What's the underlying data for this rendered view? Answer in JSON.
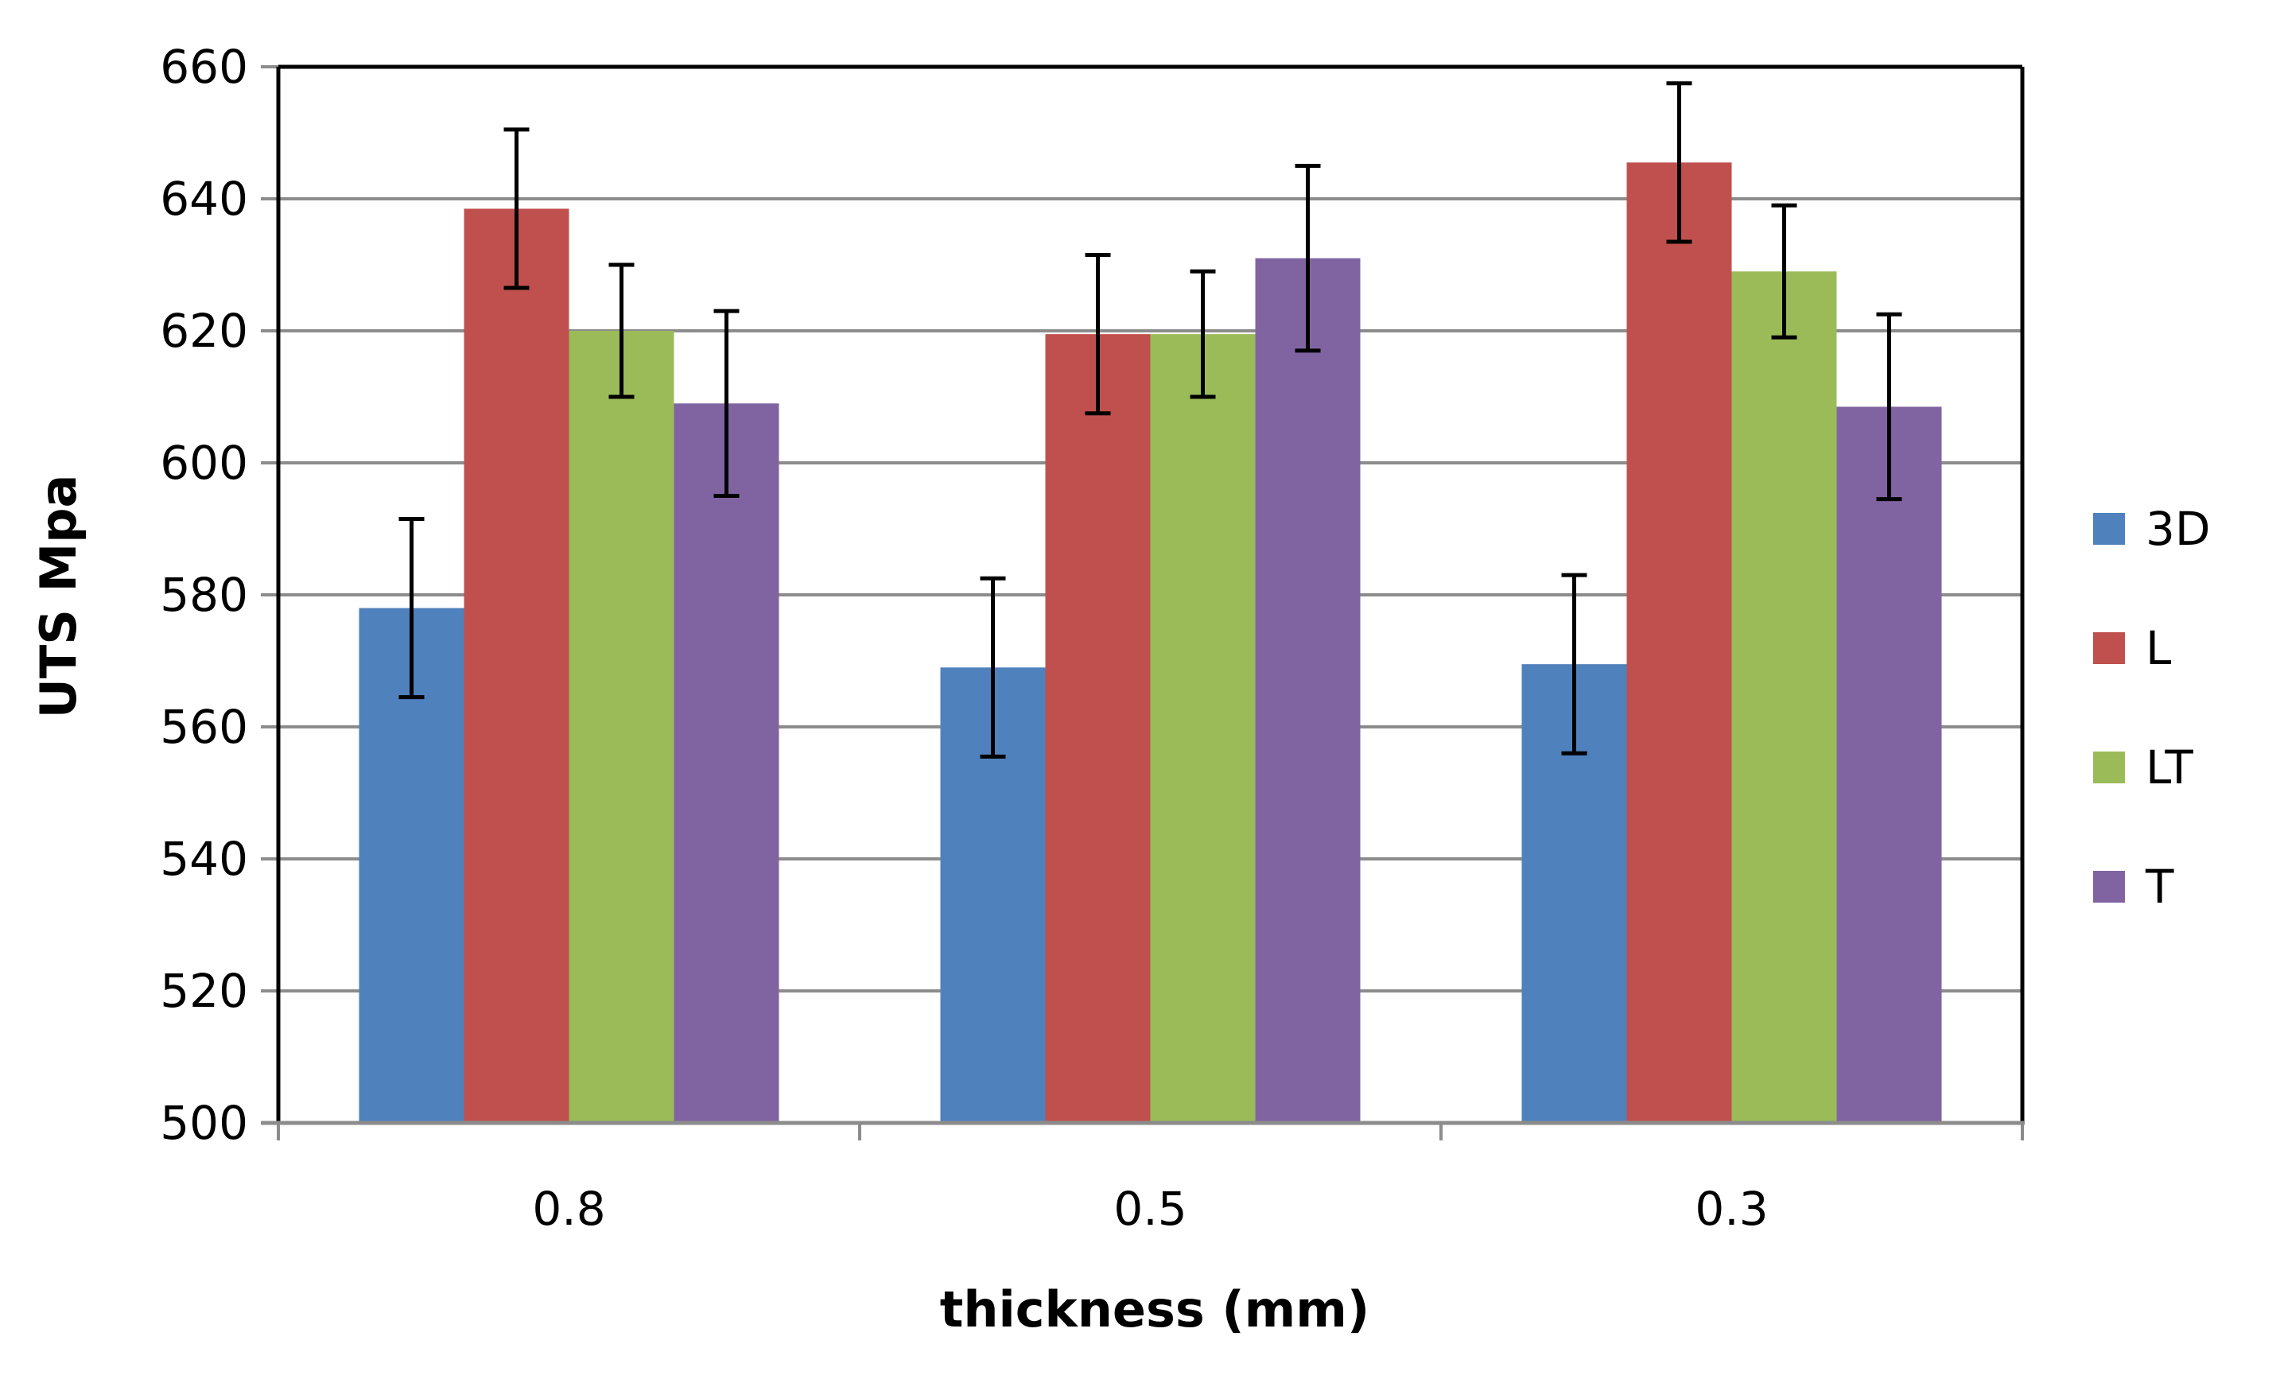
{
  "chart_data": {
    "type": "bar",
    "title": "",
    "xlabel": "thickness (mm)",
    "ylabel": "UTS Mpa",
    "ylim": [
      500,
      660
    ],
    "yticks": [
      500,
      520,
      540,
      560,
      580,
      600,
      620,
      640,
      660
    ],
    "grid": true,
    "legend_position": "right",
    "categories": [
      "0.8",
      "0.5",
      "0.3"
    ],
    "series": [
      {
        "name": "3D",
        "color": "#4F81BD",
        "values": [
          578,
          569,
          569.5
        ],
        "errors": [
          13.5,
          13.5,
          13.5
        ]
      },
      {
        "name": "L",
        "color": "#C0504D",
        "values": [
          638.5,
          619.5,
          645.5
        ],
        "errors": [
          12,
          12,
          12
        ]
      },
      {
        "name": "LT",
        "color": "#9BBB59",
        "values": [
          620,
          619.5,
          629
        ],
        "errors": [
          10,
          9.5,
          10
        ]
      },
      {
        "name": "T",
        "color": "#8064A2",
        "values": [
          609,
          631,
          608.5
        ],
        "errors": [
          14,
          14,
          14
        ]
      }
    ]
  }
}
